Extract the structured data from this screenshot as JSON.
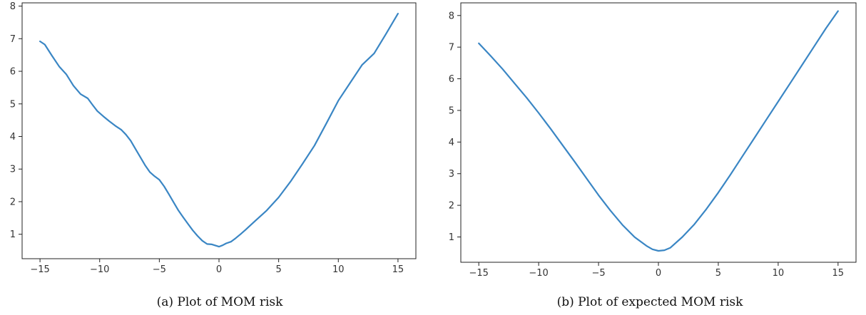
{
  "chart_data": [
    {
      "type": "line",
      "caption": "(a) Plot of MOM risk",
      "title": "",
      "xlabel": "",
      "ylabel": "",
      "xlim": [
        -16.5,
        16.5
      ],
      "ylim": [
        0.25,
        8.1
      ],
      "xticks": [
        -15,
        -10,
        -5,
        0,
        5,
        10,
        15
      ],
      "yticks": [
        1,
        2,
        3,
        4,
        5,
        6,
        7,
        8
      ],
      "xtick_labels": [
        "−15",
        "−10",
        "−5",
        "0",
        "5",
        "10",
        "15"
      ],
      "ytick_labels": [
        "1",
        "2",
        "3",
        "4",
        "5",
        "6",
        "7",
        "8"
      ],
      "grid": false,
      "line_color": "#3a86c4",
      "series": [
        {
          "x": [
            -15,
            -14.6,
            -14,
            -13.4,
            -12.8,
            -12.2,
            -11.6,
            -11.0,
            -10.6,
            -10.2,
            -9.7,
            -9.2,
            -8.7,
            -8.2,
            -7.8,
            -7.4,
            -7.0,
            -6.6,
            -6.2,
            -5.8,
            -5.4,
            -5.0,
            -4.6,
            -4.2,
            -3.8,
            -3.4,
            -3.0,
            -2.6,
            -2.2,
            -1.8,
            -1.4,
            -1.0,
            -0.6,
            0.0,
            0.3,
            0.6,
            1.0,
            1.4,
            1.8,
            2.2,
            3.0,
            4.0,
            5.0,
            6.0,
            7.0,
            8.0,
            9.0,
            10.0,
            11.0,
            12.0,
            13.0,
            14.0,
            15.0
          ],
          "y": [
            6.92,
            6.82,
            6.48,
            6.15,
            5.91,
            5.56,
            5.3,
            5.17,
            4.97,
            4.78,
            4.62,
            4.47,
            4.33,
            4.21,
            4.06,
            3.87,
            3.62,
            3.37,
            3.12,
            2.91,
            2.78,
            2.67,
            2.47,
            2.23,
            1.98,
            1.73,
            1.52,
            1.32,
            1.12,
            0.95,
            0.8,
            0.7,
            0.69,
            0.62,
            0.66,
            0.72,
            0.77,
            0.88,
            1.0,
            1.13,
            1.4,
            1.73,
            2.13,
            2.62,
            3.16,
            3.72,
            4.4,
            5.1,
            5.65,
            6.2,
            6.55,
            7.15,
            7.77
          ]
        }
      ]
    },
    {
      "type": "line",
      "caption": "(b) Plot of expected MOM risk",
      "title": "",
      "xlabel": "",
      "ylabel": "",
      "xlim": [
        -16.5,
        16.5
      ],
      "ylim": [
        0.2,
        8.4
      ],
      "xticks": [
        -15,
        -10,
        -5,
        0,
        5,
        10,
        15
      ],
      "yticks": [
        1,
        2,
        3,
        4,
        5,
        6,
        7,
        8
      ],
      "xtick_labels": [
        "−15",
        "−10",
        "−5",
        "0",
        "5",
        "10",
        "15"
      ],
      "ytick_labels": [
        "1",
        "2",
        "3",
        "4",
        "5",
        "6",
        "7",
        "8"
      ],
      "grid": false,
      "line_color": "#3a86c4",
      "series": [
        {
          "x": [
            -15,
            -14,
            -13,
            -12,
            -11,
            -10,
            -9,
            -8,
            -7,
            -6,
            -5,
            -4,
            -3,
            -2,
            -1,
            -0.5,
            0,
            0.5,
            1,
            2,
            3,
            4,
            5,
            6,
            7,
            8,
            9,
            10,
            11,
            12,
            13,
            14,
            15
          ],
          "y": [
            7.12,
            6.72,
            6.3,
            5.85,
            5.4,
            4.92,
            4.42,
            3.9,
            3.38,
            2.85,
            2.32,
            1.83,
            1.38,
            1.0,
            0.72,
            0.61,
            0.56,
            0.58,
            0.66,
            1.0,
            1.4,
            1.88,
            2.4,
            2.96,
            3.54,
            4.12,
            4.7,
            5.28,
            5.86,
            6.44,
            7.02,
            7.6,
            8.14
          ]
        }
      ]
    }
  ]
}
